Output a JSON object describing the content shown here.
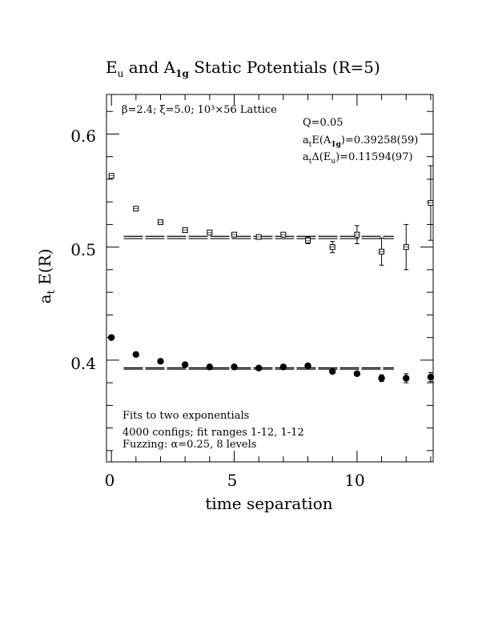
{
  "chart_data": {
    "type": "scatter",
    "title": {
      "prefix": "E",
      "sub1": "u",
      "mid": " and A",
      "sub2": "1g",
      "suffix": " Static Potentials (R=5)"
    },
    "xlabel": "time separation",
    "ylabel": {
      "main": "a",
      "sub": "t",
      "rest": " E(R)"
    },
    "xlim": [
      -0.2,
      13.1
    ],
    "ylim": [
      0.31,
      0.635
    ],
    "xticks_major": [
      0,
      5,
      10
    ],
    "xticks_minor": [
      1,
      2,
      3,
      4,
      6,
      7,
      8,
      9,
      11,
      12,
      13
    ],
    "yticks_major": [
      0.4,
      0.5,
      0.6
    ],
    "yticks_minor": [
      0.32,
      0.34,
      0.36,
      0.38,
      0.42,
      0.44,
      0.46,
      0.48,
      0.52,
      0.54,
      0.56,
      0.58,
      0.62
    ],
    "xtick_labels": [
      "0",
      "5",
      "10"
    ],
    "ytick_labels": [
      "0.4",
      "0.5",
      "0.6"
    ],
    "annotations": {
      "lattice": {
        "beta": "β=2.4;",
        "xi": "ξ=5.0;",
        "lattice": "10³×56 Lattice"
      },
      "q": "Q=0.05",
      "fit_a1g": {
        "a": "a",
        "t": "t",
        "mid": "E(A",
        "sub": "1g",
        "val": ")=0.39258(59)"
      },
      "fit_eu": {
        "a": "a",
        "t": "t",
        "mid": "Δ(E",
        "sub": "u",
        "val": ")=0.11594(97)"
      },
      "fits": "Fits to two exponentials",
      "configs": "4000 configs; fit ranges 1-12, 1-12",
      "fuzzing": "Fuzzing: α=0.25, 8 levels"
    },
    "series": [
      {
        "name": "Eu",
        "marker": "open-square",
        "x": [
          0,
          1,
          2,
          3,
          4,
          5,
          6,
          7,
          8,
          9,
          10,
          11,
          12,
          13
        ],
        "y": [
          0.563,
          0.534,
          0.522,
          0.515,
          0.513,
          0.511,
          0.509,
          0.511,
          0.506,
          0.5,
          0.511,
          0.496,
          0.5,
          0.539
        ],
        "err": [
          0.002,
          0.001,
          0.001,
          0.001,
          0.001,
          0.001,
          0.001,
          0.002,
          0.003,
          0.005,
          0.008,
          0.012,
          0.02,
          0.033
        ]
      },
      {
        "name": "A1g",
        "marker": "filled-circle",
        "x": [
          0,
          1,
          2,
          3,
          4,
          5,
          6,
          7,
          8,
          9,
          10,
          11,
          12,
          13
        ],
        "y": [
          0.42,
          0.405,
          0.399,
          0.396,
          0.394,
          0.394,
          0.393,
          0.394,
          0.395,
          0.39,
          0.388,
          0.384,
          0.384,
          0.385
        ],
        "err": [
          0.0005,
          0.0005,
          0.0005,
          0.0005,
          0.0005,
          0.0005,
          0.0005,
          0.001,
          0.001,
          0.002,
          0.002,
          0.003,
          0.004,
          0.004
        ]
      }
    ],
    "fit_bands": [
      {
        "series": "Eu",
        "x_range": [
          0.5,
          11.5
        ],
        "center": 0.5085,
        "half_width": 0.001
      },
      {
        "series": "A1g",
        "x_range": [
          0.5,
          11.5
        ],
        "center": 0.3926,
        "half_width": 0.0006
      }
    ],
    "grid": false,
    "legend": "none"
  }
}
